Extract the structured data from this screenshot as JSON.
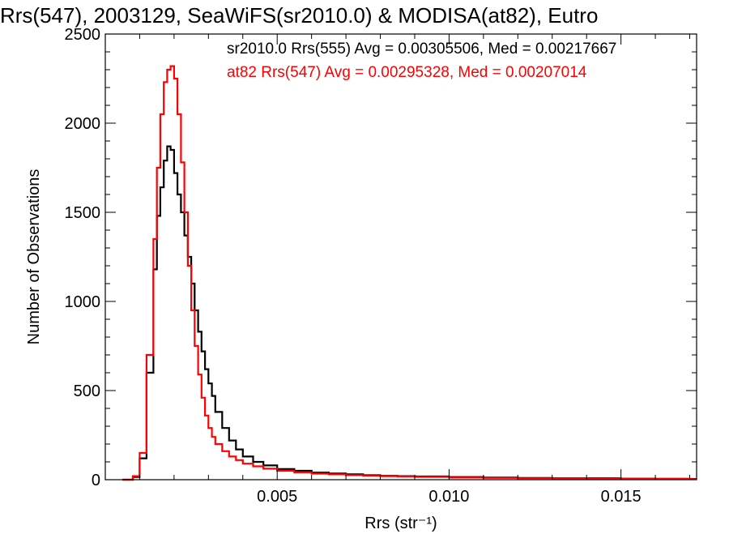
{
  "chart_data": {
    "type": "line",
    "title": "Rrs(547), 2003129, SeaWiFS(sr2010.0) & MODISA(at82), Eutro",
    "xlabel": "Rrs (str⁻¹)",
    "ylabel": "Number of Observations",
    "xlim": [
      0.0,
      0.0172
    ],
    "ylim": [
      0,
      2500
    ],
    "x_ticks": [
      0.005,
      0.01,
      0.015
    ],
    "x_tick_labels": [
      "0.005",
      "0.010",
      "0.015"
    ],
    "y_ticks": [
      0,
      500,
      1000,
      1500,
      2000,
      2500
    ],
    "y_tick_labels": [
      "0",
      "500",
      "1000",
      "1500",
      "2000",
      "2500"
    ],
    "grid": false,
    "legend_position": "top-right",
    "annotations": [
      {
        "text": "sr2010.0 Rrs(555) Avg = 0.00305506, Med = 0.00217667",
        "color": "#000000"
      },
      {
        "text": "at82 Rrs(547) Avg = 0.00295328, Med = 0.00207014",
        "color": "#ff0000"
      }
    ],
    "series": [
      {
        "color": "#000000",
        "x": [
          0.0005,
          0.0008,
          0.001,
          0.0012,
          0.0014,
          0.0015,
          0.0016,
          0.0017,
          0.0018,
          0.0019,
          0.002,
          0.0021,
          0.0022,
          0.0023,
          0.0024,
          0.0025,
          0.0026,
          0.0027,
          0.0028,
          0.0029,
          0.003,
          0.0031,
          0.0032,
          0.0034,
          0.0036,
          0.0038,
          0.004,
          0.0043,
          0.0046,
          0.005,
          0.0055,
          0.006,
          0.0065,
          0.007,
          0.0075,
          0.008,
          0.0085,
          0.009,
          0.01,
          0.011,
          0.012,
          0.013,
          0.014,
          0.015,
          0.016,
          0.017
        ],
        "values": [
          0,
          15,
          120,
          600,
          1180,
          1480,
          1640,
          1790,
          1870,
          1850,
          1720,
          1600,
          1500,
          1370,
          1250,
          1100,
          950,
          830,
          720,
          620,
          540,
          470,
          380,
          290,
          220,
          170,
          130,
          100,
          80,
          60,
          50,
          40,
          35,
          30,
          25,
          22,
          20,
          18,
          15,
          12,
          10,
          8,
          8,
          6,
          5,
          4
        ]
      },
      {
        "color": "#ff0000",
        "x": [
          0.0005,
          0.0008,
          0.001,
          0.0012,
          0.0014,
          0.0015,
          0.0016,
          0.0017,
          0.0018,
          0.0019,
          0.002,
          0.0021,
          0.0022,
          0.0023,
          0.0024,
          0.0025,
          0.0026,
          0.0027,
          0.0028,
          0.0029,
          0.003,
          0.0031,
          0.0032,
          0.0034,
          0.0036,
          0.0038,
          0.004,
          0.0043,
          0.0046,
          0.005,
          0.0055,
          0.006,
          0.0065,
          0.007,
          0.0075,
          0.008,
          0.0085,
          0.009,
          0.01,
          0.011,
          0.012,
          0.013,
          0.014,
          0.015,
          0.016,
          0.017
        ],
        "values": [
          0,
          20,
          150,
          700,
          1350,
          1750,
          2050,
          2230,
          2300,
          2320,
          2250,
          2050,
          1780,
          1500,
          1200,
          950,
          750,
          590,
          460,
          360,
          290,
          240,
          200,
          160,
          130,
          110,
          90,
          75,
          62,
          50,
          40,
          34,
          30,
          26,
          22,
          20,
          18,
          16,
          12,
          10,
          8,
          7,
          6,
          5,
          4,
          3
        ]
      }
    ]
  }
}
